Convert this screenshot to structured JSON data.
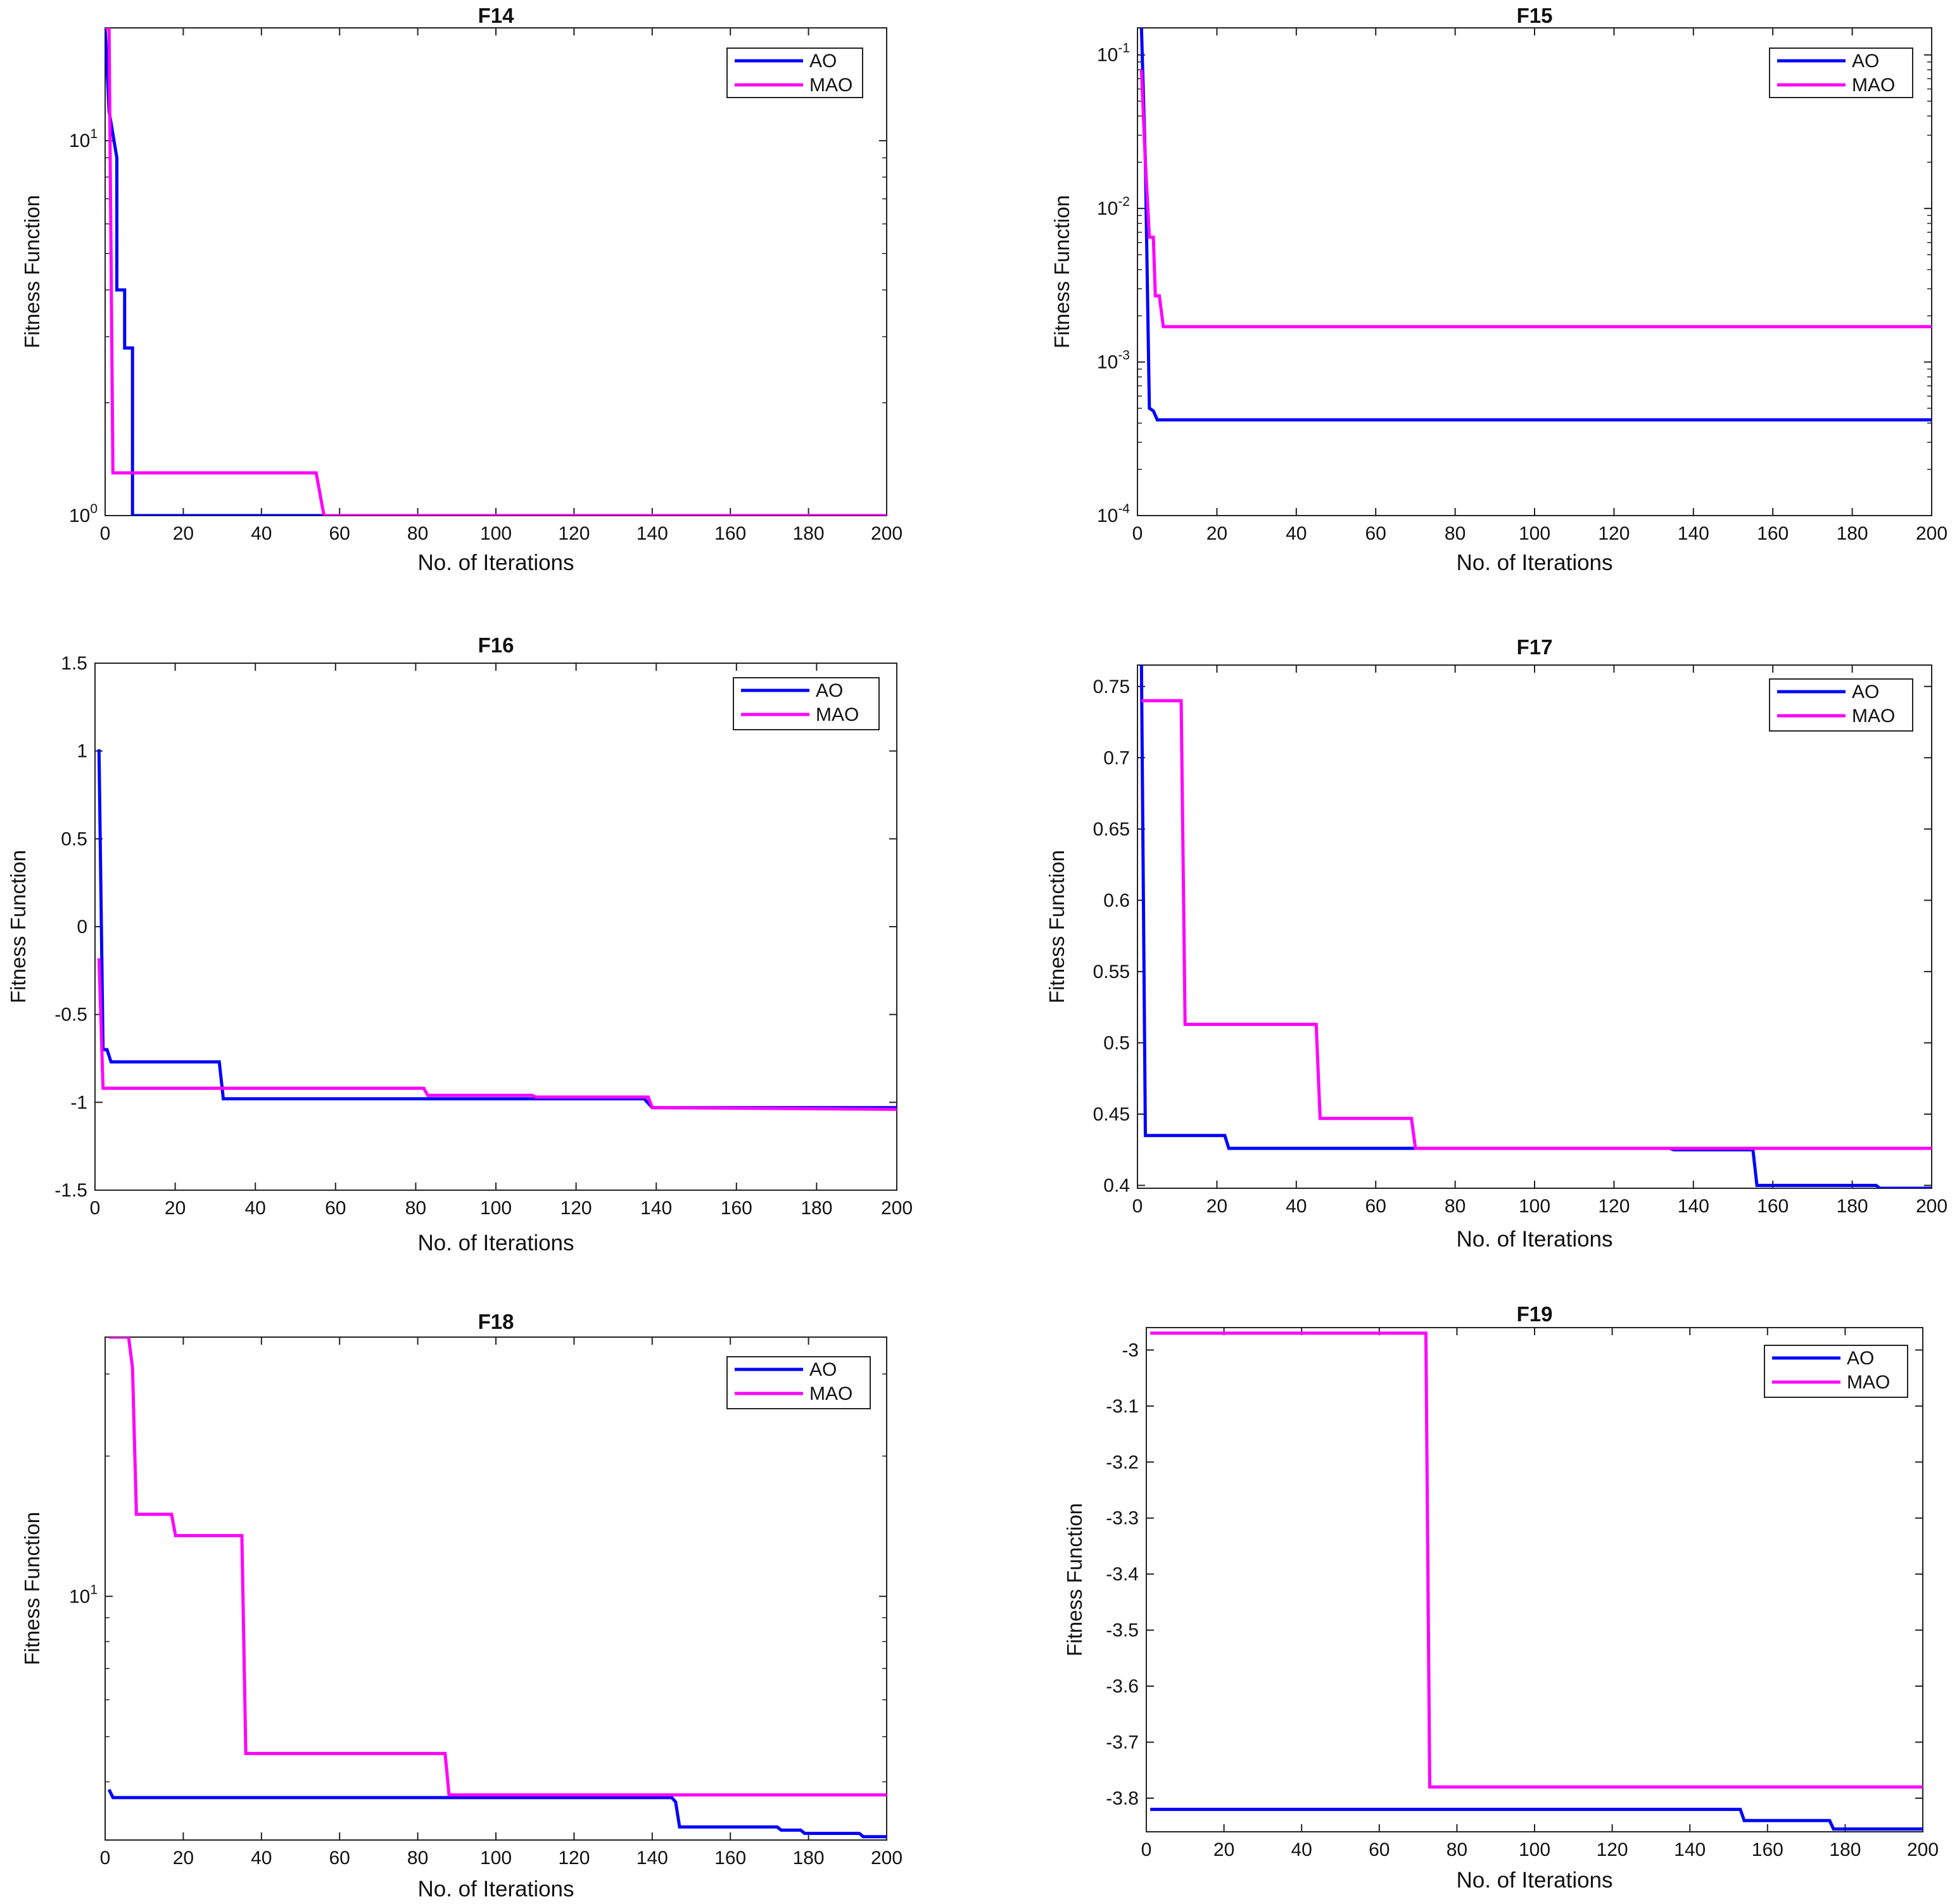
{
  "figure": {
    "colors": {
      "AO": "#0000ff",
      "MAO": "#ff00ff",
      "axis": "#222222"
    }
  },
  "chart_data": [
    {
      "type": "line",
      "title": "F14",
      "scale": "log",
      "xlabel": "No. of Iterations",
      "ylabel": "Fitness Function",
      "xlim": [
        0,
        200
      ],
      "ylim": [
        1,
        20
      ],
      "xticks": [
        0,
        20,
        40,
        60,
        80,
        100,
        120,
        140,
        160,
        180,
        200
      ],
      "yticks": [
        {
          "v": 1,
          "b": "10",
          "e": "0"
        },
        {
          "v": 10,
          "b": "10",
          "e": "1"
        }
      ],
      "legend": [
        "AO",
        "MAO"
      ],
      "legend_position": "top-right",
      "series": [
        {
          "name": "AO",
          "points": [
            [
              0,
              20
            ],
            [
              1,
              12
            ],
            [
              3,
              9
            ],
            [
              3,
              4
            ],
            [
              5,
              4
            ],
            [
              5,
              2.8
            ],
            [
              7,
              2.8
            ],
            [
              7,
              1
            ],
            [
              200,
              1
            ]
          ]
        },
        {
          "name": "MAO",
          "points": [
            [
              0,
              20
            ],
            [
              1,
              20
            ],
            [
              2,
              1.3
            ],
            [
              54,
              1.3
            ],
            [
              56,
              1
            ],
            [
              200,
              1
            ]
          ]
        }
      ]
    },
    {
      "type": "line",
      "title": "F15",
      "scale": "log",
      "xlabel": "No. of Iterations",
      "ylabel": "Fitness Function",
      "xlim": [
        0,
        200
      ],
      "ylim": [
        0.0001,
        0.15
      ],
      "xticks": [
        0,
        20,
        40,
        60,
        80,
        100,
        120,
        140,
        160,
        180,
        200
      ],
      "yticks": [
        {
          "v": 0.0001,
          "b": "10",
          "e": "-4"
        },
        {
          "v": 0.001,
          "b": "10",
          "e": "-3"
        },
        {
          "v": 0.01,
          "b": "10",
          "e": "-2"
        },
        {
          "v": 0.1,
          "b": "10",
          "e": "-1"
        }
      ],
      "legend": [
        "AO",
        "MAO"
      ],
      "legend_position": "top-right",
      "series": [
        {
          "name": "AO",
          "points": [
            [
              1,
              0.15
            ],
            [
              2,
              0.02
            ],
            [
              3,
              0.0005
            ],
            [
              4,
              0.00048
            ],
            [
              5,
              0.00042
            ],
            [
              200,
              0.00042
            ]
          ]
        },
        {
          "name": "MAO",
          "points": [
            [
              1,
              0.08
            ],
            [
              2,
              0.02
            ],
            [
              3,
              0.0065
            ],
            [
              4,
              0.0065
            ],
            [
              4.5,
              0.0027
            ],
            [
              5.5,
              0.0027
            ],
            [
              6.5,
              0.0017
            ],
            [
              200,
              0.0017
            ]
          ]
        }
      ]
    },
    {
      "type": "line",
      "title": "F16",
      "scale": "linear",
      "xlabel": "No. of Iterations",
      "ylabel": "Fitness Function",
      "xlim": [
        0,
        200
      ],
      "ylim": [
        -1.5,
        1.5
      ],
      "xticks": [
        0,
        20,
        40,
        60,
        80,
        100,
        120,
        140,
        160,
        180,
        200
      ],
      "yticks": [
        {
          "v": 1.5,
          "t": "1.5"
        },
        {
          "v": 1,
          "t": "1"
        },
        {
          "v": 0.5,
          "t": "0.5"
        },
        {
          "v": 0,
          "t": "0"
        },
        {
          "v": -0.5,
          "t": "-0.5"
        },
        {
          "v": -1,
          "t": "-1"
        },
        {
          "v": -1.5,
          "t": "-1.5"
        }
      ],
      "legend": [
        "AO",
        "MAO"
      ],
      "legend_position": "top-right",
      "series": [
        {
          "name": "AO",
          "points": [
            [
              1,
              1.01
            ],
            [
              2,
              -0.7
            ],
            [
              3,
              -0.7
            ],
            [
              4,
              -0.77
            ],
            [
              31,
              -0.77
            ],
            [
              32,
              -0.98
            ],
            [
              137,
              -0.98
            ],
            [
              139,
              -1.03
            ],
            [
              200,
              -1.03
            ]
          ]
        },
        {
          "name": "MAO",
          "points": [
            [
              1,
              -0.18
            ],
            [
              2,
              -0.92
            ],
            [
              82,
              -0.92
            ],
            [
              83,
              -0.96
            ],
            [
              109,
              -0.96
            ],
            [
              110,
              -0.97
            ],
            [
              138,
              -0.97
            ],
            [
              139,
              -1.03
            ],
            [
              200,
              -1.04
            ]
          ]
        }
      ]
    },
    {
      "type": "line",
      "title": "F17",
      "scale": "linear",
      "xlabel": "No. of Iterations",
      "ylabel": "Fitness Function",
      "xlim": [
        0,
        200
      ],
      "ylim": [
        0.398,
        0.765
      ],
      "xticks": [
        0,
        20,
        40,
        60,
        80,
        100,
        120,
        140,
        160,
        180,
        200
      ],
      "yticks": [
        {
          "v": 0.75,
          "t": "0.75"
        },
        {
          "v": 0.7,
          "t": "0.7"
        },
        {
          "v": 0.65,
          "t": "0.65"
        },
        {
          "v": 0.6,
          "t": "0.6"
        },
        {
          "v": 0.55,
          "t": "0.55"
        },
        {
          "v": 0.5,
          "t": "0.5"
        },
        {
          "v": 0.45,
          "t": "0.45"
        },
        {
          "v": 0.4,
          "t": "0.4"
        }
      ],
      "legend": [
        "AO",
        "MAO"
      ],
      "legend_position": "top-right",
      "series": [
        {
          "name": "AO",
          "points": [
            [
              1,
              0.765
            ],
            [
              2,
              0.435
            ],
            [
              22,
              0.435
            ],
            [
              23,
              0.426
            ],
            [
              134,
              0.426
            ],
            [
              135,
              0.425
            ],
            [
              155,
              0.425
            ],
            [
              156,
              0.4
            ],
            [
              186,
              0.4
            ],
            [
              187,
              0.398
            ],
            [
              200,
              0.398
            ]
          ]
        },
        {
          "name": "MAO",
          "points": [
            [
              1,
              0.74
            ],
            [
              11,
              0.74
            ],
            [
              12,
              0.513
            ],
            [
              45,
              0.513
            ],
            [
              46,
              0.447
            ],
            [
              69,
              0.447
            ],
            [
              70,
              0.426
            ],
            [
              200,
              0.426
            ]
          ]
        }
      ]
    },
    {
      "type": "line",
      "title": "F18",
      "scale": "log",
      "xlabel": "No. of Iterations",
      "ylabel": "Fitness Function",
      "xlim": [
        0,
        200
      ],
      "ylim": [
        3.0,
        36.0
      ],
      "xticks": [
        0,
        20,
        40,
        60,
        80,
        100,
        120,
        140,
        160,
        180,
        200
      ],
      "yticks": [
        {
          "v": 10,
          "b": "10",
          "e": "1"
        }
      ],
      "legend": [
        "AO",
        "MAO"
      ],
      "legend_position": "top-right",
      "series": [
        {
          "name": "AO",
          "points": [
            [
              1,
              3.85
            ],
            [
              2,
              3.7
            ],
            [
              145,
              3.7
            ],
            [
              146,
              3.62
            ],
            [
              147,
              3.2
            ],
            [
              172,
              3.2
            ],
            [
              173,
              3.15
            ],
            [
              178,
              3.15
            ],
            [
              179,
              3.1
            ],
            [
              193,
              3.1
            ],
            [
              194,
              3.05
            ],
            [
              200,
              3.05
            ]
          ]
        },
        {
          "name": "MAO",
          "points": [
            [
              1,
              36
            ],
            [
              6,
              36
            ],
            [
              7,
              31
            ],
            [
              8,
              15
            ],
            [
              17,
              15
            ],
            [
              18,
              13.5
            ],
            [
              35,
              13.5
            ],
            [
              36,
              4.6
            ],
            [
              87,
              4.6
            ],
            [
              88,
              3.75
            ],
            [
              200,
              3.75
            ]
          ]
        }
      ]
    },
    {
      "type": "line",
      "title": "F19",
      "scale": "linear",
      "xlabel": "No. of Iterations",
      "ylabel": "Fitness Function",
      "xlim": [
        0,
        200
      ],
      "ylim": [
        -3.86,
        -2.96
      ],
      "xticks": [
        0,
        20,
        40,
        60,
        80,
        100,
        120,
        140,
        160,
        180,
        200
      ],
      "yticks": [
        {
          "v": -3,
          "t": "-3"
        },
        {
          "v": -3.1,
          "t": "-3.1"
        },
        {
          "v": -3.2,
          "t": "-3.2"
        },
        {
          "v": -3.3,
          "t": "-3.3"
        },
        {
          "v": -3.4,
          "t": "-3.4"
        },
        {
          "v": -3.5,
          "t": "-3.5"
        },
        {
          "v": -3.6,
          "t": "-3.6"
        },
        {
          "v": -3.7,
          "t": "-3.7"
        },
        {
          "v": -3.8,
          "t": "-3.8"
        }
      ],
      "legend": [
        "AO",
        "MAO"
      ],
      "legend_position": "top-right",
      "series": [
        {
          "name": "AO",
          "points": [
            [
              1,
              -3.82
            ],
            [
              153,
              -3.82
            ],
            [
              154,
              -3.84
            ],
            [
              176,
              -3.84
            ],
            [
              177,
              -3.855
            ],
            [
              200,
              -3.855
            ]
          ]
        },
        {
          "name": "MAO",
          "points": [
            [
              1,
              -2.97
            ],
            [
              72,
              -2.97
            ],
            [
              73,
              -3.78
            ],
            [
              200,
              -3.78
            ]
          ]
        }
      ]
    }
  ]
}
